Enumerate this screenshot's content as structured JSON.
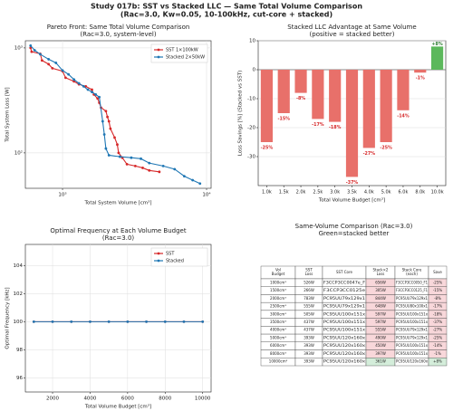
{
  "title": "Study 017b: SST vs Stacked LLC — Same Total Volume Comparison",
  "subtitle": "(Rac=3.0, Kw=0.05, 10-100kHz, cut-core + stacked)",
  "chart_data": [
    {
      "type": "scatter-line",
      "title": "Pareto Front: Same Total Volume Comparison",
      "subtitle": "(Rac=3.0, system-level)",
      "x_label": "Total System Volume [cm³]",
      "y_label": "Total System Loss [W]",
      "xscale": "log",
      "yscale": "log",
      "xlim": [
        552,
        10750
      ],
      "ylim": [
        46,
        1170
      ],
      "xticks": [
        {
          "value": 1000,
          "label": "10³"
        },
        {
          "value": 10000,
          "label": "10⁴"
        }
      ],
      "yticks": [
        {
          "value": 100,
          "label": "10²"
        },
        {
          "value": 1000,
          "label": "10³"
        }
      ],
      "grid": true,
      "legend": "upper right",
      "series": [
        {
          "name": "SST 1×100kW",
          "color": "#d62728",
          "x": [
            600,
            610,
            700,
            720,
            800,
            850,
            1000,
            1050,
            1200,
            1300,
            1450,
            1600,
            1650,
            1750,
            1800,
            1850,
            2000,
            2050,
            2100,
            2150,
            2300,
            2400,
            2450,
            2600,
            2800,
            3200,
            3600,
            4000,
            4700
          ],
          "values": [
            1000,
            920,
            880,
            760,
            700,
            640,
            600,
            520,
            480,
            450,
            430,
            400,
            360,
            330,
            300,
            270,
            250,
            220,
            200,
            170,
            140,
            120,
            100,
            90,
            78,
            75,
            72,
            68,
            66
          ]
        },
        {
          "name": "Stacked 2×50kW",
          "color": "#1f77b4",
          "x": [
            600,
            640,
            700,
            800,
            900,
            1000,
            1100,
            1200,
            1300,
            1400,
            1500,
            1600,
            1700,
            1800,
            1900,
            1950,
            2000,
            2100,
            2500,
            3000,
            3500,
            4000,
            5000,
            6000,
            7000,
            8000,
            9000
          ],
          "values": [
            1050,
            950,
            870,
            780,
            720,
            610,
            560,
            500,
            460,
            430,
            400,
            380,
            360,
            340,
            200,
            150,
            110,
            95,
            92,
            90,
            88,
            80,
            75,
            70,
            60,
            55,
            51
          ]
        }
      ]
    },
    {
      "type": "bar",
      "title": "Stacked LLC Advantage at Same Volume",
      "subtitle": "(positive = stacked better)",
      "x_label": "Total Volume Budget [cm³]",
      "y_label": "Loss Savings [%] (Stacked vs SST)",
      "categories": [
        "1.0k",
        "1.5k",
        "2.0k",
        "2.5k",
        "3.0k",
        "3.5k",
        "4.0k",
        "5.0k",
        "6.0k",
        "8.0k",
        "10.0k"
      ],
      "values": [
        -25,
        -15,
        -8,
        -17,
        -18,
        -37,
        -27,
        -25,
        -14,
        -1,
        8
      ],
      "value_labels": [
        "-25%",
        "-15%",
        "-8%",
        "-17%",
        "-18%",
        "-37%",
        "-27%",
        "-25%",
        "-14%",
        "-1%",
        "+8%"
      ],
      "colors": {
        "negative": "#e8706a",
        "positive": "#5cb85c"
      },
      "ylim": [
        -40,
        10
      ],
      "yticks": [
        -30,
        -20,
        -10,
        0,
        10
      ],
      "grid": true
    },
    {
      "type": "line",
      "title": "Optimal Frequency at Each Volume Budget",
      "subtitle": "(Rac=3.0)",
      "x_label": "Total Volume Budget [cm³]",
      "y_label": "Optimal Frequency [kHz]",
      "x": [
        1000,
        2000,
        3000,
        4000,
        5000,
        6000,
        7000,
        8000,
        9000,
        10000
      ],
      "xlim": [
        550,
        10450
      ],
      "ylim": [
        95,
        105.5
      ],
      "xticks": [
        2000,
        4000,
        6000,
        8000,
        10000
      ],
      "yticks": [
        96,
        98,
        100,
        102,
        104
      ],
      "grid": true,
      "legend": "upper right",
      "series": [
        {
          "name": "SST",
          "color": "#d62728",
          "values": [
            100,
            100,
            100,
            100,
            100,
            100,
            100,
            100,
            100,
            100
          ]
        },
        {
          "name": "Stacked",
          "color": "#1f77b4",
          "values": [
            100,
            100,
            100,
            100,
            100,
            100,
            100,
            100,
            100,
            100
          ]
        }
      ]
    },
    {
      "type": "table",
      "title": "Same-Volume Comparison (Rac=3.0)",
      "subtitle": "Green=stacked better",
      "colors": {
        "better": "#d4edda",
        "worse": "#f8d7da"
      },
      "columns": [
        [
          "Vol",
          "Budget"
        ],
        [
          "SST",
          "Loss"
        ],
        [
          "SST Core"
        ],
        [
          "Stack×2",
          "Loss"
        ],
        [
          "Stack Core",
          "(each)"
        ],
        [
          "Save"
        ]
      ],
      "rows": [
        [
          "1000cm³",
          "526W",
          "F3CCP3CC0047e_F",
          "656W",
          "F3CCP3CC0050_F1",
          "-25%"
        ],
        [
          "1500cm³",
          "266W",
          "F3CCP3CC0125e",
          "305W",
          "F3CCP3CC0125_F1",
          "-15%"
        ],
        [
          "2000cm³",
          "783W",
          "PC95UU79x129x1",
          "844W",
          "PC95UU79x129x1",
          "-8%"
        ],
        [
          "2500cm³",
          "555W",
          "PC95UU79x129x1",
          "648W",
          "PC95UU80x100x1",
          "-17%"
        ],
        [
          "3000cm³",
          "505W",
          "PC95UU100x151x",
          "597W",
          "PC95UU100x151x",
          "-18%"
        ],
        [
          "3500cm³",
          "437W",
          "PC95UU100x151x",
          "597W",
          "PC95UU100x151x",
          "-37%"
        ],
        [
          "4000cm³",
          "437W",
          "PC95UU100x151x",
          "555W",
          "PC95UU79x129x1",
          "-27%"
        ],
        [
          "5000cm³",
          "393W",
          "PC95UU120x160x",
          "490W",
          "PC95UU79x129x1",
          "-25%"
        ],
        [
          "6000cm³",
          "393W",
          "PC95UU120x160x",
          "450W",
          "PC95UU100x151x",
          "-14%"
        ],
        [
          "8000cm³",
          "393W",
          "PC95UU120x160x",
          "397W",
          "PC95UU100x151x",
          "-1%"
        ],
        [
          "10000cm³",
          "393W",
          "PC95UU120x160x",
          "361W",
          "PC95UU120x160x",
          "+8%"
        ]
      ]
    }
  ]
}
